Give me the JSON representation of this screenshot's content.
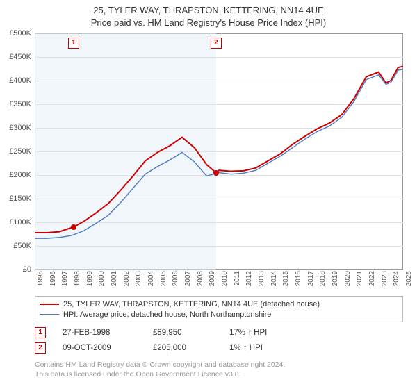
{
  "title_line1": "25, TYLER WAY, THRAPSTON, KETTERING, NN14 4UE",
  "title_line2": "Price paid vs. HM Land Registry's House Price Index (HPI)",
  "chart": {
    "type": "line",
    "background_color": "#ffffff",
    "grid_color": "#e0e0e0",
    "border_color": "#999999",
    "ylim": [
      0,
      500000
    ],
    "ytick_step": 50000,
    "ytick_labels": [
      "£0",
      "£50K",
      "£100K",
      "£150K",
      "£200K",
      "£250K",
      "£300K",
      "£350K",
      "£400K",
      "£450K",
      "£500K"
    ],
    "xlim": [
      1995,
      2025
    ],
    "xtick_step": 1,
    "xtick_labels": [
      "1995",
      "1996",
      "1997",
      "1998",
      "1999",
      "2000",
      "2001",
      "2002",
      "2003",
      "2004",
      "2005",
      "2006",
      "2007",
      "2008",
      "2009",
      "2010",
      "2011",
      "2012",
      "2013",
      "2014",
      "2015",
      "2016",
      "2017",
      "2018",
      "2019",
      "2020",
      "2021",
      "2022",
      "2023",
      "2024",
      "2025"
    ],
    "highlight_band_color": "#e6eef8",
    "label_fontsize": 11,
    "series": [
      {
        "name": "property",
        "label": "25, TYLER WAY, THRAPSTON, KETTERING, NN14 4UE (detached house)",
        "color": "#cc0000",
        "line_width": 2,
        "data": [
          [
            1995,
            78000
          ],
          [
            1996,
            78000
          ],
          [
            1997,
            80000
          ],
          [
            1998.16,
            89950
          ],
          [
            1999,
            102000
          ],
          [
            2000,
            120000
          ],
          [
            2001,
            140000
          ],
          [
            2002,
            168000
          ],
          [
            2003,
            198000
          ],
          [
            2004,
            230000
          ],
          [
            2005,
            248000
          ],
          [
            2006,
            262000
          ],
          [
            2007,
            280000
          ],
          [
            2008,
            258000
          ],
          [
            2009,
            222000
          ],
          [
            2009.77,
            205000
          ],
          [
            2010,
            210000
          ],
          [
            2011,
            208000
          ],
          [
            2012,
            209000
          ],
          [
            2013,
            215000
          ],
          [
            2014,
            230000
          ],
          [
            2015,
            245000
          ],
          [
            2016,
            265000
          ],
          [
            2017,
            282000
          ],
          [
            2018,
            298000
          ],
          [
            2019,
            310000
          ],
          [
            2020,
            328000
          ],
          [
            2021,
            362000
          ],
          [
            2022,
            408000
          ],
          [
            2023,
            418000
          ],
          [
            2023.6,
            395000
          ],
          [
            2024,
            400000
          ],
          [
            2024.6,
            428000
          ],
          [
            2025,
            430000
          ]
        ]
      },
      {
        "name": "hpi",
        "label": "HPI: Average price, detached house, North Northamptonshire",
        "color": "#4a78c4",
        "line_width": 1.4,
        "data": [
          [
            1995,
            66000
          ],
          [
            1996,
            66000
          ],
          [
            1997,
            68000
          ],
          [
            1998,
            72000
          ],
          [
            1999,
            82000
          ],
          [
            2000,
            98000
          ],
          [
            2001,
            115000
          ],
          [
            2002,
            142000
          ],
          [
            2003,
            172000
          ],
          [
            2004,
            202000
          ],
          [
            2005,
            218000
          ],
          [
            2006,
            232000
          ],
          [
            2007,
            248000
          ],
          [
            2008,
            228000
          ],
          [
            2009,
            198000
          ],
          [
            2010,
            205000
          ],
          [
            2011,
            202000
          ],
          [
            2012,
            204000
          ],
          [
            2013,
            210000
          ],
          [
            2014,
            225000
          ],
          [
            2015,
            240000
          ],
          [
            2016,
            258000
          ],
          [
            2017,
            276000
          ],
          [
            2018,
            292000
          ],
          [
            2019,
            304000
          ],
          [
            2020,
            322000
          ],
          [
            2021,
            356000
          ],
          [
            2022,
            402000
          ],
          [
            2023,
            412000
          ],
          [
            2023.6,
            392000
          ],
          [
            2024,
            396000
          ],
          [
            2024.6,
            422000
          ],
          [
            2025,
            424000
          ]
        ]
      }
    ],
    "sale_markers": [
      {
        "n": "1",
        "x": 1998.16,
        "y": 89950
      },
      {
        "n": "2",
        "x": 2009.77,
        "y": 205000
      }
    ]
  },
  "legend": {
    "items": [
      {
        "color": "#cc0000",
        "label": "25, TYLER WAY, THRAPSTON, KETTERING, NN14 4UE (detached house)"
      },
      {
        "color": "#4a78c4",
        "label": "HPI: Average price, detached house, North Northamptonshire"
      }
    ]
  },
  "sales": [
    {
      "n": "1",
      "date": "27-FEB-1998",
      "price": "£89,950",
      "delta": "17% ↑ HPI"
    },
    {
      "n": "2",
      "date": "09-OCT-2009",
      "price": "£205,000",
      "delta": "1% ↑ HPI"
    }
  ],
  "footer_line1": "Contains HM Land Registry data © Crown copyright and database right 2024.",
  "footer_line2": "This data is licensed under the Open Government Licence v3.0."
}
